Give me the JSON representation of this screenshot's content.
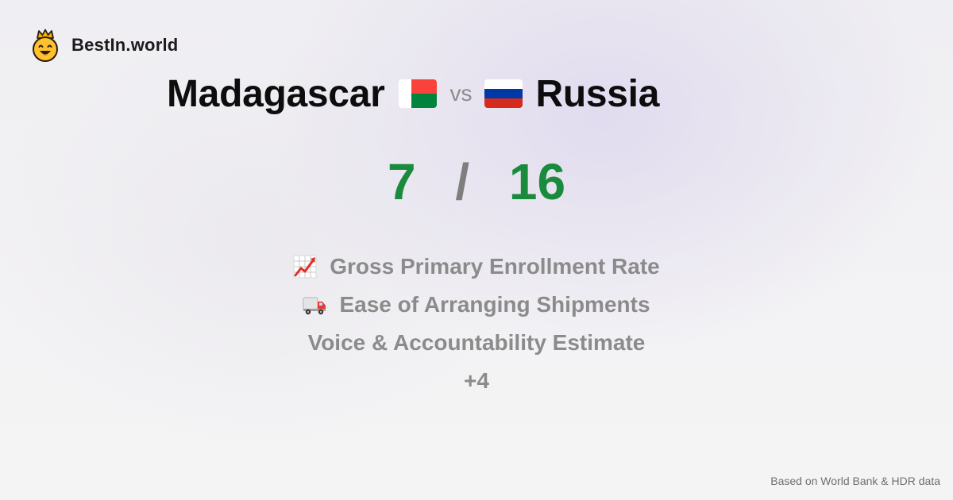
{
  "brand": {
    "name": "BestIn.world",
    "logo_icon": "crowned-smiley-icon"
  },
  "comparison": {
    "country_a": {
      "name": "Madagascar",
      "flag_icon": "madagascar-flag-icon",
      "flag_colors": [
        "#ffffff",
        "#f9423a",
        "#00843d"
      ]
    },
    "vs_label": "vs",
    "country_b": {
      "name": "Russia",
      "flag_icon": "russia-flag-icon",
      "flag_colors": [
        "#ffffff",
        "#0039a6",
        "#d52b1e"
      ]
    }
  },
  "score": {
    "a": "7",
    "separator": "/",
    "b": "16",
    "color": "#1a8a3c"
  },
  "metrics": [
    {
      "icon": "chart-increasing-icon",
      "label": "Gross Primary Enrollment Rate"
    },
    {
      "icon": "delivery-truck-icon",
      "label": "Ease of Arranging Shipments"
    },
    {
      "icon": "",
      "label": "Voice & Accountability Estimate"
    },
    {
      "icon": "",
      "label": "+4"
    }
  ],
  "footer": {
    "source": "Based on World Bank & HDR data"
  }
}
